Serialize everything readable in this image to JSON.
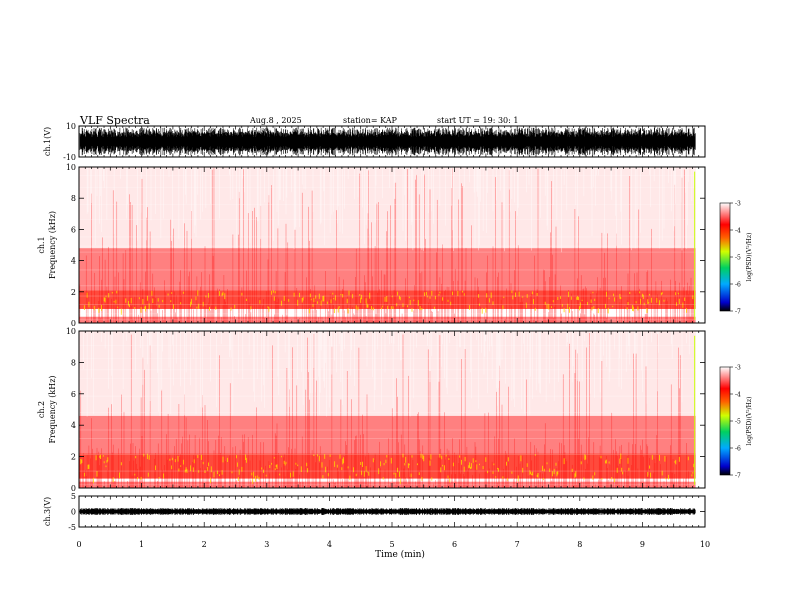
{
  "header": {
    "title": "VLF Spectra",
    "date": "Aug.8 , 2025",
    "station": "station= KAP",
    "start": "start UT = 19: 30: 1"
  },
  "colors": {
    "background": "#ffffff",
    "axis": "#000000",
    "spectrum_low": "#ff9a9a",
    "spectrum_mid": "#ff0000",
    "spectrum_high": "#ffd400"
  },
  "chart_data": [
    {
      "type": "line",
      "name": "ch1-waveform",
      "ylabel": "ch.1(V)",
      "ylim": [
        -10,
        10
      ],
      "yticks": [
        "10",
        "-10"
      ],
      "xlim": [
        0,
        10
      ],
      "description_values": {
        "amplitude_range": [
          -10,
          10
        ],
        "end_time_min": 9.85
      }
    },
    {
      "type": "heatmap",
      "name": "ch1-spectrogram",
      "ylabel": "ch.1\nFrequency (kHz)",
      "ylim": [
        0,
        10
      ],
      "yticks": [
        "0",
        "2",
        "4",
        "6",
        "8",
        "10"
      ],
      "xlim": [
        0,
        10
      ],
      "data_end_min": 9.85,
      "bands": [
        {
          "f_low": 0.0,
          "f_high": 0.4,
          "level": "medium"
        },
        {
          "f_low": 0.9,
          "f_high": 2.1,
          "level": "high"
        },
        {
          "f_low": 2.1,
          "f_high": 4.8,
          "level": "medium"
        },
        {
          "f_low": 4.8,
          "f_high": 10.0,
          "level": "low"
        }
      ],
      "colorbar": {
        "label": "log(PSD)(V²/Hz)",
        "ticks": [
          "-3",
          "-4",
          "-5",
          "-6",
          "-7"
        ],
        "range": [
          -7,
          -3
        ]
      }
    },
    {
      "type": "heatmap",
      "name": "ch2-spectrogram",
      "ylabel": "ch.2\nFrequency (kHz)",
      "ylim": [
        0,
        10
      ],
      "yticks": [
        "0",
        "2",
        "4",
        "6",
        "8",
        "10"
      ],
      "xlim": [
        0,
        10
      ],
      "data_end_min": 9.85,
      "bands": [
        {
          "f_low": 0.0,
          "f_high": 0.4,
          "level": "medium"
        },
        {
          "f_low": 0.6,
          "f_high": 2.2,
          "level": "high"
        },
        {
          "f_low": 2.2,
          "f_high": 4.6,
          "level": "medium"
        },
        {
          "f_low": 4.6,
          "f_high": 10.0,
          "level": "low"
        }
      ],
      "colorbar": {
        "label": "log(PSD)(V²/Hz)",
        "ticks": [
          "-3",
          "-4",
          "-5",
          "-6",
          "-7"
        ],
        "range": [
          -7,
          -3
        ]
      }
    },
    {
      "type": "line",
      "name": "ch3-waveform",
      "ylabel": "ch.3(V)",
      "ylim": [
        -5,
        5
      ],
      "yticks": [
        "5",
        "0",
        "-5"
      ],
      "xlim": [
        0,
        10
      ],
      "description_values": {
        "amplitude_range": [
          -1,
          1
        ],
        "end_time_min": 9.85
      }
    }
  ],
  "xaxis": {
    "label": "Time (min)",
    "ticks": [
      "0",
      "1",
      "2",
      "3",
      "4",
      "5",
      "6",
      "7",
      "8",
      "9",
      "10"
    ],
    "range": [
      0,
      10
    ]
  }
}
